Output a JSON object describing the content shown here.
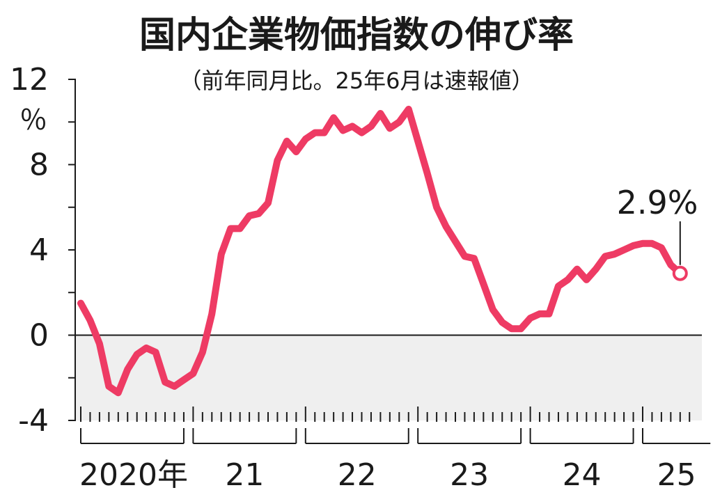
{
  "chart_data": {
    "type": "line",
    "title": "国内企業物価指数の伸び率",
    "subtitle": "（前年同月比。25年6月は速報値）",
    "y_unit": "％",
    "ylim": [
      -4,
      12
    ],
    "y_ticks": [
      -4,
      0,
      4,
      8,
      12
    ],
    "y_tick_labels": [
      "-4",
      "0",
      "4",
      "8",
      "12"
    ],
    "y_minor_ticks": [
      -2,
      2,
      6,
      10
    ],
    "negative_region_shaded": true,
    "x_year_labels": [
      "2020年",
      "21",
      "22",
      "23",
      "24",
      "25"
    ],
    "months_per_year": [
      12,
      12,
      12,
      12,
      12,
      6
    ],
    "series": [
      {
        "values": [
          1.5,
          0.7,
          -0.4,
          -2.4,
          -2.7,
          -1.6,
          -0.9,
          -0.6,
          -0.8,
          -2.2,
          -2.4,
          -2.1,
          -1.8,
          -0.8,
          1.0,
          3.8,
          5.0,
          5.0,
          5.6,
          5.7,
          6.2,
          8.2,
          9.1,
          8.6,
          9.2,
          9.5,
          9.5,
          10.2,
          9.6,
          9.8,
          9.5,
          9.8,
          10.4,
          9.7,
          10.0,
          10.6,
          9.1,
          7.6,
          6.0,
          5.1,
          4.4,
          3.7,
          3.6,
          2.4,
          1.2,
          0.6,
          0.3,
          0.3,
          0.8,
          1.0,
          1.0,
          2.3,
          2.6,
          3.1,
          2.6,
          3.1,
          3.7,
          3.8,
          4.0,
          4.2,
          4.3,
          4.3,
          4.1,
          3.3,
          2.9
        ],
        "color": "#ee3b64"
      }
    ],
    "annotation": {
      "label": "2.9%",
      "value": 2.9
    }
  }
}
